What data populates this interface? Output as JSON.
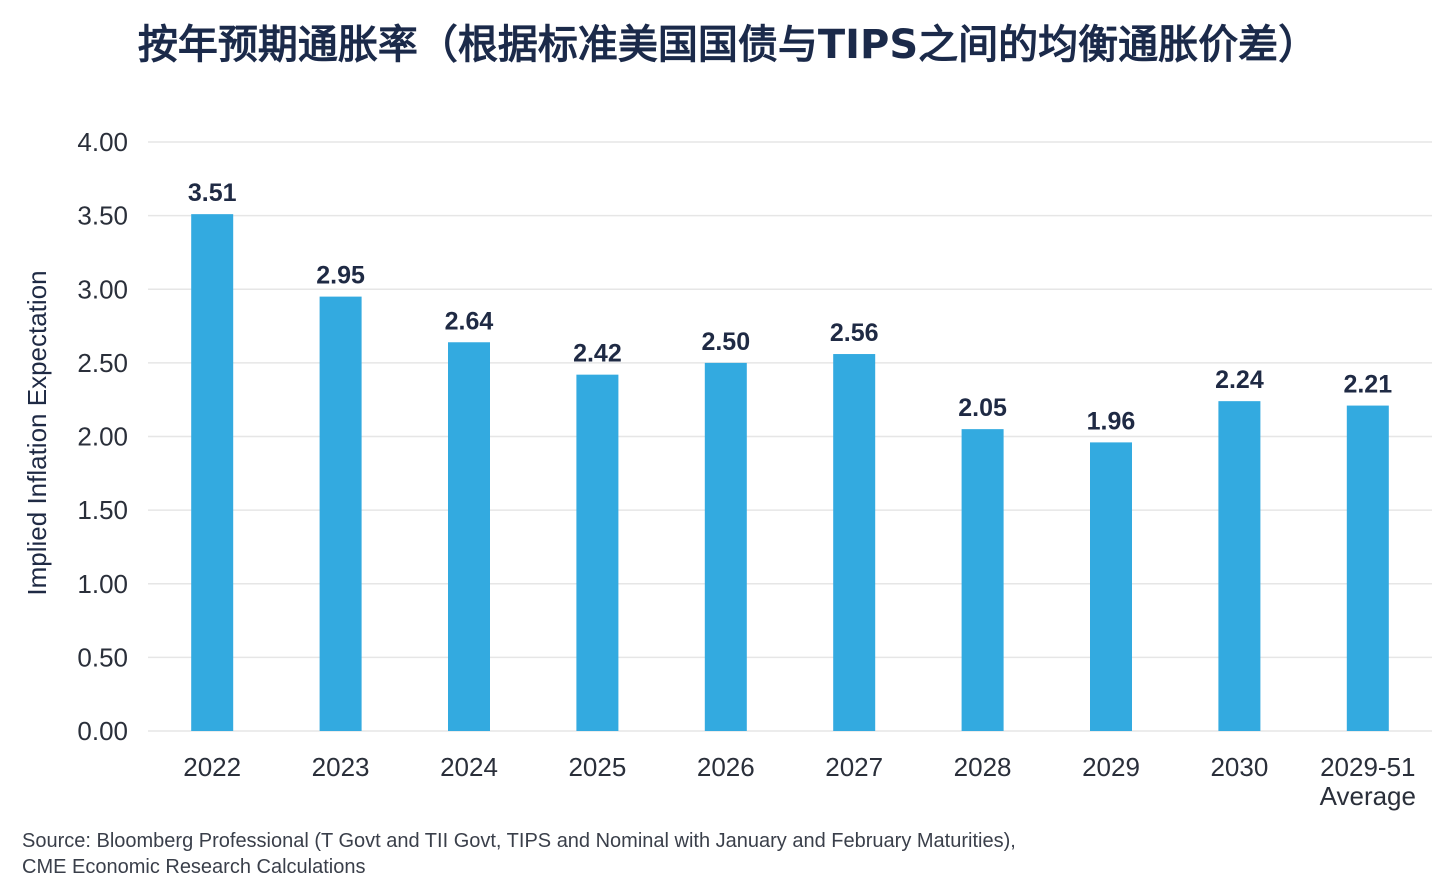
{
  "chart_data": {
    "type": "bar",
    "title": "按年预期通胀率（根据标准美国国债与TIPS之间的均衡通胀价差）",
    "ylabel": "Implied Inflation Expectation",
    "xlabel": "",
    "categories": [
      [
        "2022"
      ],
      [
        "2023"
      ],
      [
        "2024"
      ],
      [
        "2025"
      ],
      [
        "2026"
      ],
      [
        "2027"
      ],
      [
        "2028"
      ],
      [
        "2029"
      ],
      [
        "2030"
      ],
      [
        "2029-51",
        "Average"
      ]
    ],
    "values": [
      3.51,
      2.95,
      2.64,
      2.42,
      2.5,
      2.56,
      2.05,
      1.96,
      2.24,
      2.21
    ],
    "value_labels": [
      "3.51",
      "2.95",
      "2.64",
      "2.42",
      "2.50",
      "2.56",
      "2.05",
      "1.96",
      "2.24",
      "2.21"
    ],
    "yticks": [
      "0.00",
      "0.50",
      "1.00",
      "1.50",
      "2.00",
      "2.50",
      "3.00",
      "3.50",
      "4.00"
    ],
    "ylim": [
      0,
      4
    ],
    "grid": true,
    "bar_color": "#33aae0",
    "grid_color": "#e6e6e6"
  },
  "source": {
    "line1": "Source: Bloomberg Professional (T Govt and TII Govt, TIPS and Nominal with January and February Maturities),",
    "line2": "CME Economic Research Calculations"
  }
}
